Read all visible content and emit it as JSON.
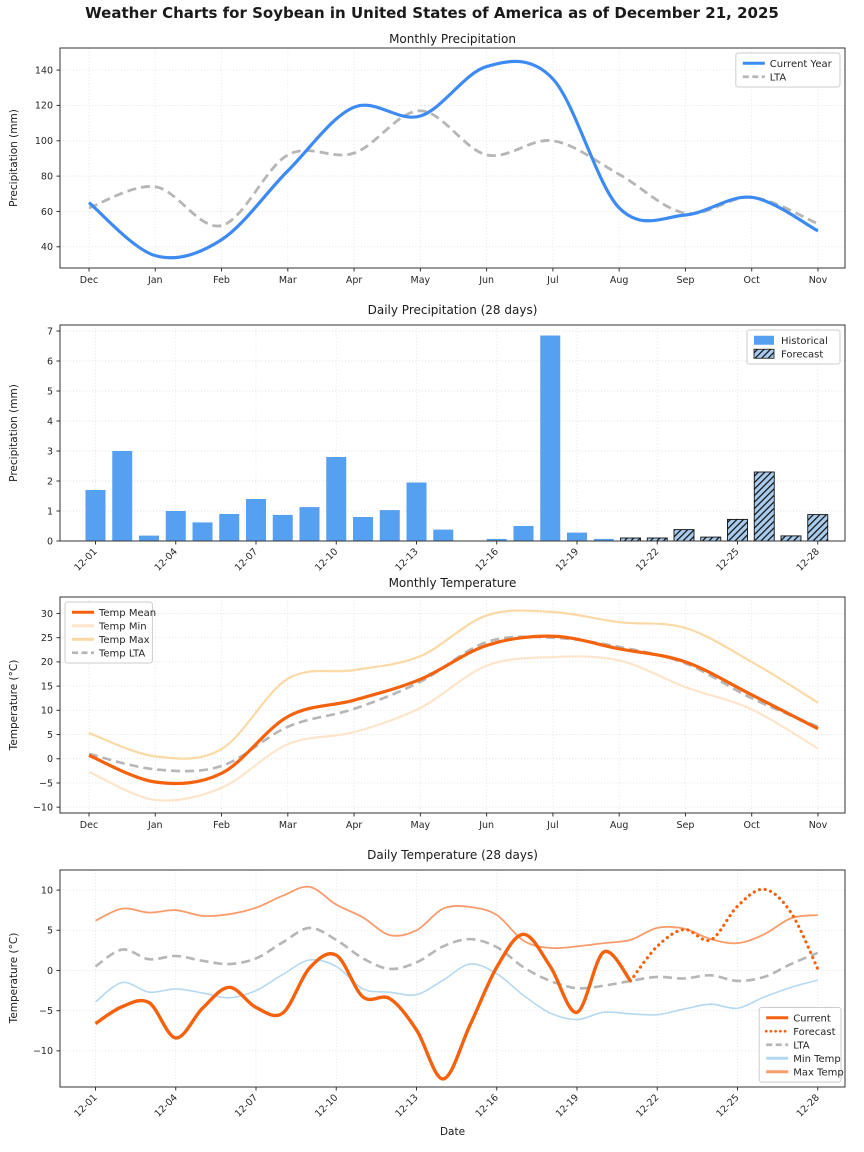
{
  "figure_title": "Weather Charts for Soybean in United States of America as of December 21, 2025",
  "colors": {
    "current_blue": "#3d8bf2",
    "bar_blue": "#55a0f0",
    "bar_forecast_fill": "#a9cbee",
    "hatch_dark": "#111111",
    "lta_gray": "#b6b6b6",
    "temp_orange": "#f4620d",
    "temp_min_pale": "#fde5cb",
    "temp_max_light": "#fbd9a5",
    "daily_min_blue": "#b5d8f2",
    "daily_max_salmon": "#f89c6b"
  },
  "chart_data": [
    {
      "id": "monthly-precipitation",
      "type": "line",
      "title": "Monthly Precipitation",
      "ylabel": "Precipitation (mm)",
      "xlabel": "",
      "categories": [
        "Dec",
        "Jan",
        "Feb",
        "Mar",
        "Apr",
        "May",
        "Jun",
        "Jul",
        "Aug",
        "Sep",
        "Oct",
        "Nov"
      ],
      "tick_step": 1,
      "ylim": [
        28,
        152.5
      ],
      "yticks": [
        40,
        60,
        80,
        100,
        120,
        140
      ],
      "grid": true,
      "legend_pos": "top-right",
      "series": [
        {
          "name": "Current Year",
          "color": "#3d8bf2",
          "style": "solid",
          "width": 3.2,
          "z": 2,
          "values": [
            65,
            35,
            44,
            83,
            119,
            114,
            142,
            135,
            62,
            58,
            68,
            49
          ]
        },
        {
          "name": "LTA",
          "color": "#b6b6b6",
          "style": "dashed",
          "width": 2.8,
          "z": 1,
          "values": [
            62,
            74,
            52,
            92,
            93,
            117,
            92,
            100,
            81,
            59,
            68,
            53
          ]
        }
      ]
    },
    {
      "id": "daily-precipitation",
      "type": "bar",
      "title": "Daily Precipitation (28 days)",
      "ylabel": "Precipitation (mm)",
      "xlabel": "",
      "categories": [
        "12-01",
        "12-02",
        "12-03",
        "12-04",
        "12-05",
        "12-06",
        "12-07",
        "12-08",
        "12-09",
        "12-10",
        "12-11",
        "12-12",
        "12-13",
        "12-14",
        "12-15",
        "12-16",
        "12-17",
        "12-18",
        "12-19",
        "12-20",
        "12-21",
        "12-22",
        "12-23",
        "12-24",
        "12-25",
        "12-26",
        "12-27",
        "12-28"
      ],
      "tick_step": 3,
      "ylim": [
        0,
        7.2
      ],
      "yticks": [
        0,
        1,
        2,
        3,
        4,
        5,
        6,
        7
      ],
      "grid": true,
      "legend_pos": "top-right",
      "values": [
        1.7,
        3.0,
        0.18,
        1.0,
        0.62,
        0.9,
        1.4,
        0.87,
        1.13,
        2.8,
        0.8,
        1.03,
        1.95,
        0.38,
        0.0,
        0.07,
        0.5,
        6.85,
        0.28,
        0.07,
        0.1,
        0.1,
        0.38,
        0.13,
        0.72,
        2.3,
        0.17,
        0.88
      ],
      "forecast_from": 20,
      "series": [
        {
          "name": "Historical",
          "swatch": "patch-solid"
        },
        {
          "name": "Forecast",
          "swatch": "patch-hatch"
        }
      ]
    },
    {
      "id": "monthly-temperature",
      "type": "line",
      "title": "Monthly Temperature",
      "ylabel": "Temperature (°C)",
      "xlabel": "",
      "categories": [
        "Dec",
        "Jan",
        "Feb",
        "Mar",
        "Apr",
        "May",
        "Jun",
        "Jul",
        "Aug",
        "Sep",
        "Oct",
        "Nov"
      ],
      "tick_step": 1,
      "ylim": [
        -11.2,
        33.4
      ],
      "yticks": [
        -10,
        -5,
        0,
        5,
        10,
        15,
        20,
        25,
        30
      ],
      "grid": true,
      "legend_pos": "top-left",
      "series": [
        {
          "name": "Temp Mean",
          "color": "#f4620d",
          "style": "solid",
          "width": 3.2,
          "z": 4,
          "values": [
            0.7,
            -4.8,
            -3.0,
            8.7,
            12.1,
            16.4,
            23.4,
            25.3,
            22.7,
            20.0,
            13.2,
            6.2
          ]
        },
        {
          "name": "Temp Min",
          "color": "#fde5cb",
          "style": "solid",
          "width": 2.2,
          "z": 1,
          "values": [
            -2.7,
            -8.5,
            -6.0,
            3.0,
            5.5,
            10.5,
            19.2,
            21.0,
            20.3,
            14.8,
            10.2,
            2.1
          ]
        },
        {
          "name": "Temp Max",
          "color": "#fbd9a5",
          "style": "solid",
          "width": 2.2,
          "z": 2,
          "values": [
            5.3,
            0.5,
            2.0,
            16.5,
            18.3,
            21.2,
            29.6,
            30.3,
            28.2,
            27.0,
            20.0,
            11.6
          ]
        },
        {
          "name": "Temp LTA",
          "color": "#b6b6b6",
          "style": "dashed",
          "width": 2.6,
          "z": 3,
          "values": [
            1.0,
            -2.2,
            -1.5,
            6.6,
            10.3,
            15.9,
            24.1,
            25.0,
            23.1,
            19.7,
            12.5,
            6.6
          ]
        }
      ]
    },
    {
      "id": "daily-temperature",
      "type": "line",
      "title": "Daily Temperature (28 days)",
      "ylabel": "Temperature (°C)",
      "xlabel": "Date",
      "categories": [
        "12-01",
        "12-02",
        "12-03",
        "12-04",
        "12-05",
        "12-06",
        "12-07",
        "12-08",
        "12-09",
        "12-10",
        "12-11",
        "12-12",
        "12-13",
        "12-14",
        "12-15",
        "12-16",
        "12-17",
        "12-18",
        "12-19",
        "12-20",
        "12-21",
        "12-22",
        "12-23",
        "12-24",
        "12-25",
        "12-26",
        "12-27",
        "12-28"
      ],
      "tick_step": 3,
      "ylim": [
        -14.5,
        12.5
      ],
      "yticks": [
        -10,
        -5,
        0,
        5,
        10
      ],
      "grid": true,
      "legend_pos": "bottom-right",
      "series": [
        {
          "name": "Current",
          "color": "#f4620d",
          "style": "solid",
          "width": 3.4,
          "z": 5,
          "values": [
            -6.6,
            -4.5,
            -4.0,
            -8.4,
            -4.7,
            -2.1,
            -4.6,
            -5.3,
            0.3,
            1.9,
            -3.3,
            -3.5,
            -7.4,
            -13.5,
            -6.8,
            0.4,
            4.5,
            0.5,
            -5.2,
            2.3,
            -1.3,
            null,
            null,
            null,
            null,
            null,
            null,
            null
          ]
        },
        {
          "name": "Forecast",
          "color": "#f4620d",
          "style": "dotted",
          "width": 3.2,
          "z": 4,
          "values": [
            null,
            null,
            null,
            null,
            null,
            null,
            null,
            null,
            null,
            null,
            null,
            null,
            null,
            null,
            null,
            null,
            null,
            null,
            null,
            null,
            -1.3,
            3.0,
            5.1,
            3.8,
            8.0,
            10.1,
            7.2,
            0.2
          ]
        },
        {
          "name": "LTA",
          "color": "#b6b6b6",
          "style": "dashed",
          "width": 2.6,
          "z": 3,
          "values": [
            0.5,
            2.6,
            1.4,
            1.8,
            1.2,
            0.8,
            1.5,
            3.5,
            5.3,
            3.8,
            1.5,
            0.2,
            1.0,
            3.0,
            3.9,
            2.9,
            0.4,
            -1.3,
            -2.2,
            -1.9,
            -1.3,
            -0.8,
            -1.0,
            -0.6,
            -1.3,
            -0.8,
            0.8,
            2.2
          ]
        },
        {
          "name": "Min Temp",
          "color": "#b5d8f2",
          "style": "solid",
          "width": 1.6,
          "z": 1,
          "values": [
            -3.9,
            -1.5,
            -2.7,
            -2.3,
            -2.8,
            -3.4,
            -2.5,
            -0.5,
            1.3,
            0.5,
            -2.3,
            -2.7,
            -3.0,
            -1.2,
            0.8,
            -0.4,
            -3.1,
            -5.3,
            -6.1,
            -5.2,
            -5.4,
            -5.5,
            -4.8,
            -4.2,
            -4.7,
            -3.3,
            -2.1,
            -1.2
          ]
        },
        {
          "name": "Max Temp",
          "color": "#f89c6b",
          "style": "solid",
          "width": 1.8,
          "z": 2,
          "values": [
            6.2,
            7.7,
            7.2,
            7.5,
            6.8,
            7.0,
            7.8,
            9.3,
            10.4,
            8.2,
            6.6,
            4.4,
            5.0,
            7.7,
            7.9,
            6.9,
            3.7,
            2.8,
            3.0,
            3.4,
            3.8,
            5.3,
            5.2,
            3.9,
            3.4,
            4.5,
            6.5,
            6.9
          ]
        }
      ]
    }
  ]
}
